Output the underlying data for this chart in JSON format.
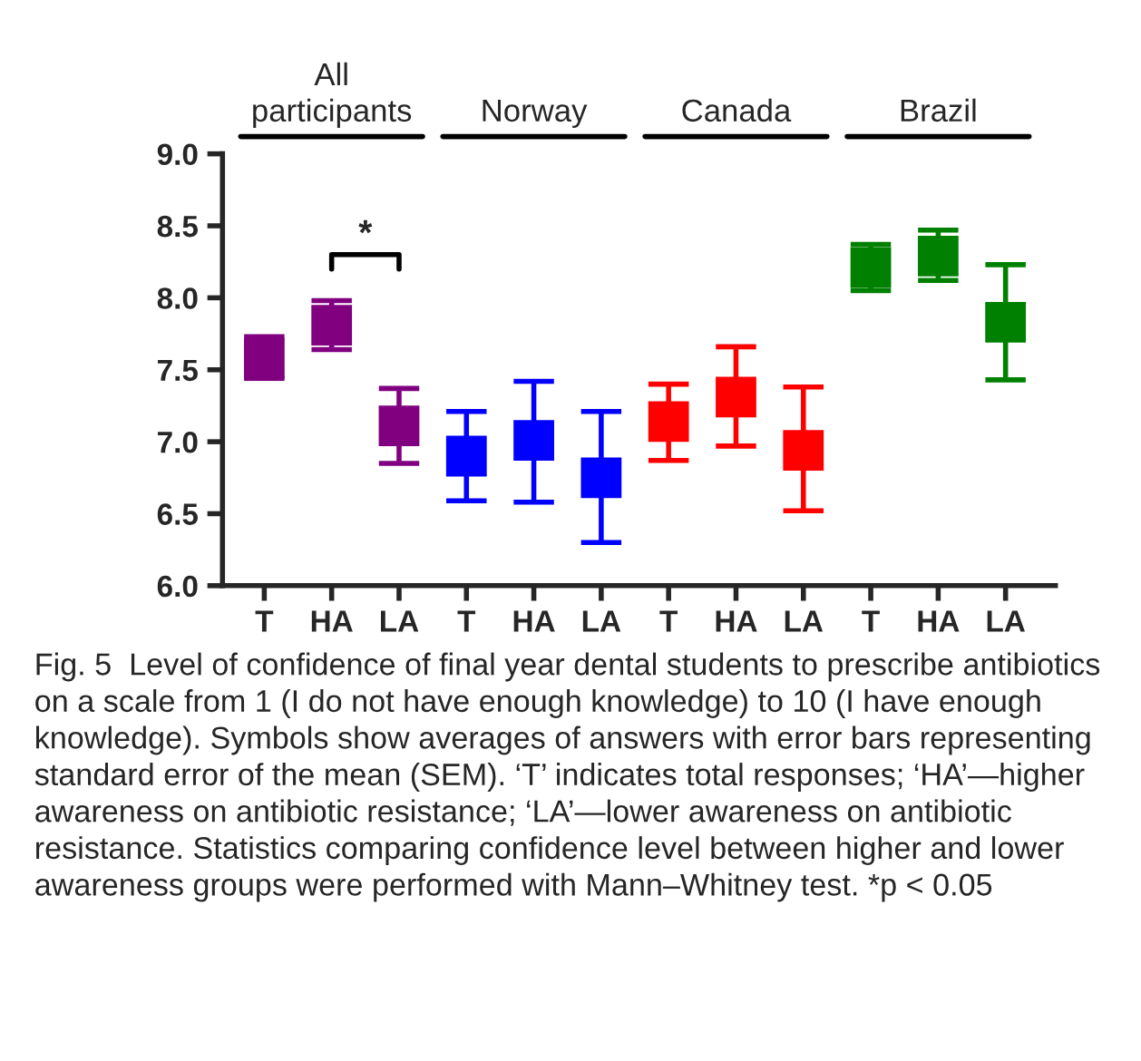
{
  "chart_data": {
    "type": "scatter",
    "categories": [
      "T",
      "HA",
      "LA",
      "T",
      "HA",
      "LA",
      "T",
      "HA",
      "LA",
      "T",
      "HA",
      "LA"
    ],
    "values": [
      7.58,
      7.81,
      7.11,
      6.9,
      7.01,
      6.75,
      7.14,
      7.31,
      6.94,
      8.21,
      8.29,
      7.83
    ],
    "errors": [
      [
        7.44,
        7.73
      ],
      [
        7.64,
        7.98
      ],
      [
        6.85,
        7.37
      ],
      [
        6.59,
        7.21
      ],
      [
        6.58,
        7.42
      ],
      [
        6.3,
        7.21
      ],
      [
        6.87,
        7.4
      ],
      [
        6.97,
        7.66
      ],
      [
        6.52,
        7.38
      ],
      [
        8.05,
        8.37
      ],
      [
        8.12,
        8.47
      ],
      [
        7.43,
        8.23
      ]
    ],
    "colors": [
      "#800080",
      "#800080",
      "#800080",
      "#0000ff",
      "#0000ff",
      "#0000ff",
      "#ff0000",
      "#ff0000",
      "#ff0000",
      "#008000",
      "#008000",
      "#008000"
    ],
    "marker": "square",
    "ylim": [
      6.0,
      9.0
    ],
    "yticks": [
      {
        "value": 6,
        "label": "6.0"
      },
      {
        "value": 6.5,
        "label": "6.5"
      },
      {
        "value": 7,
        "label": "7.0"
      },
      {
        "value": 7.5,
        "label": "7.5"
      },
      {
        "value": 8,
        "label": "8.0"
      },
      {
        "value": 8.5,
        "label": "8.5"
      },
      {
        "value": 9,
        "label": "9.0"
      }
    ],
    "grid": false,
    "legend": false,
    "annotations": [
      "All\nparticipants",
      "Norway",
      "Canada",
      "Brazil",
      "*",
      "Fig. 5  Level of confidence of final year dental students to prescribe antibiotics on a scale from 1 (I do not have enough knowledge) to 10 (I have enough knowledge). Symbols show averages of answers with error bars representing standard error of the mean (SEM). ‘T’ indicates total responses; ‘HA’—higher awareness on antibiotic resistance; ‘LA’—lower awareness on antibiotic resistance. Statistics comparing confidence level between higher and lower awareness groups were performed with Mann–Whitney test. *p < 0.05"
    ]
  }
}
